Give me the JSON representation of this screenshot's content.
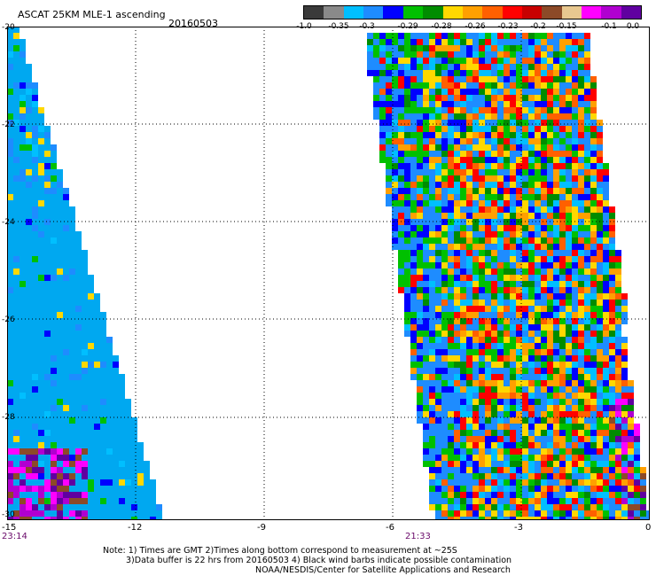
{
  "header": {
    "title": "ASCAT 25KM MLE-1 ascending",
    "date": "20160503"
  },
  "colorbar": {
    "labels": [
      "-1.0",
      "-0.35",
      "-0.3",
      "-0.29",
      "-0.28",
      "-0.26",
      "-0.23",
      "-0.2",
      "-0.15",
      "-0.1",
      "0.0"
    ],
    "colors": [
      "#3a3a3a",
      "#8a8a8a",
      "#00bfff",
      "#1e8cff",
      "#0000ff",
      "#00c000",
      "#008c00",
      "#ffd800",
      "#ffa000",
      "#ff6000",
      "#ff0000",
      "#c80000",
      "#8c4a28",
      "#e8c890",
      "#ff00ff",
      "#b000d0",
      "#6000a0"
    ]
  },
  "axes": {
    "x_labels": [
      "-15",
      "-12",
      "-9",
      "-6",
      "-3",
      "0"
    ],
    "y_labels": [
      "-20",
      "-22",
      "-24",
      "-26",
      "-28",
      "-30"
    ]
  },
  "times": {
    "left": "23:14",
    "right": "21:33"
  },
  "notes": {
    "line1": "Note: 1) Times are GMT 2)Times along bottom correspond to measurement at ~25S",
    "line2": "3)Data buffer is 22 hrs from 20160503 4) Black wind barbs indicate possible contamination",
    "line3": "NOAA/NESDIS/Center for Satellite Applications and Research"
  },
  "palette": {
    "left_swath": [
      "#1e8cff",
      "#1e8cff",
      "#1e8cff",
      "#00bfff",
      "#0000ff",
      "#00c000",
      "#ffd800"
    ],
    "right_swath": [
      "#1e8cff",
      "#1e8cff",
      "#0000ff",
      "#00c000",
      "#008c00",
      "#ffd800",
      "#ffa000",
      "#ff6000",
      "#ff0000",
      "#00bfff"
    ],
    "edge_magenta": [
      "#ff00ff",
      "#b000d0",
      "#6000a0",
      "#8c4a28"
    ]
  }
}
